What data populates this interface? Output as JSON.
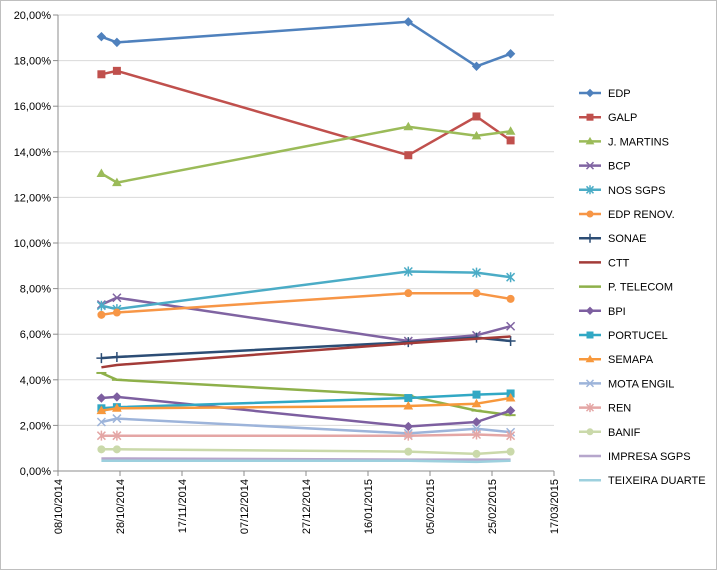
{
  "chart_data": {
    "type": "line",
    "x": [
      "2014-10-22",
      "2014-10-27",
      "2015-01-29",
      "2015-02-20",
      "2015-03-03"
    ],
    "xlim": [
      "2014-10-08",
      "2015-03-17"
    ],
    "x_ticks": [
      "08/10/2014",
      "28/10/2014",
      "17/11/2014",
      "07/12/2014",
      "27/12/2014",
      "16/01/2015",
      "05/02/2015",
      "25/02/2015",
      "17/03/2015"
    ],
    "ylim": [
      0,
      20
    ],
    "y_ticks": [
      "0,00%",
      "2,00%",
      "4,00%",
      "6,00%",
      "8,00%",
      "10,00%",
      "12,00%",
      "14,00%",
      "16,00%",
      "18,00%",
      "20,00%"
    ],
    "grid": "horizontal",
    "legend_position": "right",
    "series": [
      {
        "name": "EDP",
        "color": "#4F81BD",
        "marker": "diamond",
        "values": [
          19.05,
          18.8,
          19.7,
          17.75,
          18.3
        ]
      },
      {
        "name": "GALP",
        "color": "#C0504D",
        "marker": "square",
        "values": [
          17.4,
          17.55,
          13.85,
          15.55,
          14.5
        ]
      },
      {
        "name": "J. MARTINS",
        "color": "#9BBB59",
        "marker": "triangle",
        "values": [
          13.05,
          12.65,
          15.1,
          14.7,
          14.9
        ]
      },
      {
        "name": "BCP",
        "color": "#8064A2",
        "marker": "x",
        "values": [
          7.3,
          7.6,
          5.7,
          5.95,
          6.35
        ]
      },
      {
        "name": "NOS SGPS",
        "color": "#4BACC6",
        "marker": "star",
        "values": [
          7.25,
          7.1,
          8.75,
          8.7,
          8.5
        ]
      },
      {
        "name": "EDP RENOV.",
        "color": "#F79646",
        "marker": "circle",
        "values": [
          6.85,
          6.95,
          7.8,
          7.8,
          7.55
        ]
      },
      {
        "name": "SONAE",
        "color": "#2C4D75",
        "marker": "plus",
        "values": [
          4.95,
          5.0,
          5.65,
          5.85,
          5.7
        ]
      },
      {
        "name": "CTT",
        "color": "#A33B38",
        "marker": "none",
        "values": [
          4.55,
          4.65,
          5.6,
          5.8,
          5.9
        ]
      },
      {
        "name": "P. TELECOM",
        "color": "#8EB04A",
        "marker": "dash",
        "values": [
          4.3,
          4.0,
          3.3,
          2.65,
          2.45
        ]
      },
      {
        "name": "BPI",
        "color": "#7D5FA0",
        "marker": "diamond",
        "values": [
          3.2,
          3.25,
          1.95,
          2.15,
          2.65
        ]
      },
      {
        "name": "PORTUCEL",
        "color": "#31A8C4",
        "marker": "square",
        "values": [
          2.75,
          2.8,
          3.2,
          3.35,
          3.4
        ]
      },
      {
        "name": "SEMAPA",
        "color": "#F7983C",
        "marker": "triangle",
        "values": [
          2.65,
          2.75,
          2.85,
          2.95,
          3.2
        ]
      },
      {
        "name": "MOTA ENGIL",
        "color": "#9DB4DA",
        "marker": "x",
        "values": [
          2.15,
          2.3,
          1.65,
          1.85,
          1.7
        ]
      },
      {
        "name": "REN",
        "color": "#E4A6A5",
        "marker": "star",
        "values": [
          1.55,
          1.55,
          1.55,
          1.6,
          1.55
        ]
      },
      {
        "name": "BANIF",
        "color": "#CAD9AA",
        "marker": "circle",
        "values": [
          0.95,
          0.95,
          0.85,
          0.75,
          0.85
        ]
      },
      {
        "name": "IMPRESA SGPS",
        "color": "#B6A6CC",
        "marker": "none",
        "values": [
          0.55,
          0.55,
          0.5,
          0.5,
          0.5
        ]
      },
      {
        "name": "TEIXEIRA DUARTE",
        "color": "#9DD0DE",
        "marker": "none",
        "values": [
          0.45,
          0.45,
          0.45,
          0.4,
          0.45
        ]
      }
    ]
  }
}
